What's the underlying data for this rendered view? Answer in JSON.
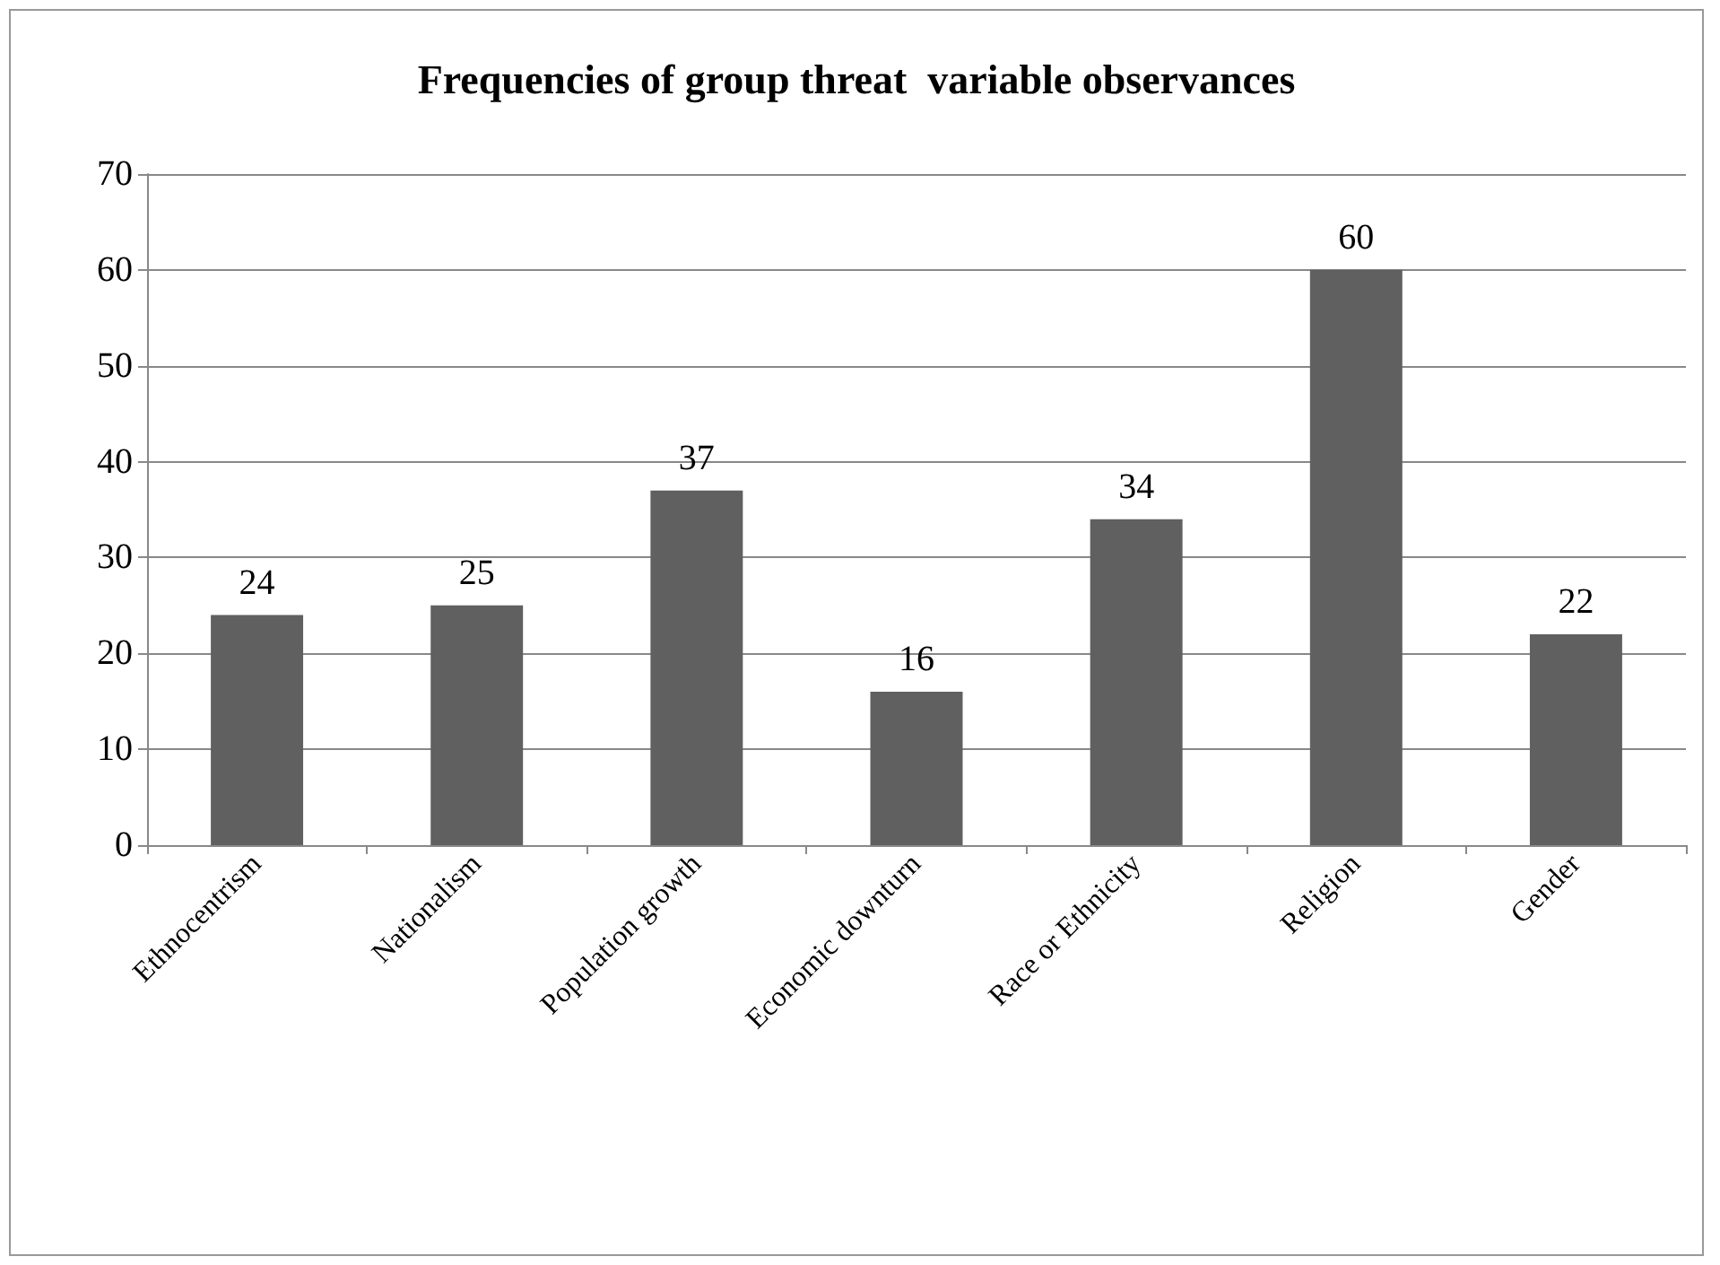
{
  "chart_data": {
    "type": "bar",
    "title": "Frequencies of group threat  variable observances",
    "categories": [
      "Ethnocentrism",
      "Nationalism",
      "Population growth",
      "Economic downturn",
      "Race or Ethnicity",
      "Religion",
      "Gender"
    ],
    "values": [
      24,
      25,
      37,
      16,
      34,
      60,
      22
    ],
    "color": "#606060",
    "ylim": [
      0,
      70
    ],
    "yticks": [
      0,
      10,
      20,
      30,
      40,
      50,
      60,
      70
    ],
    "grid": "y",
    "data_labels": true
  }
}
